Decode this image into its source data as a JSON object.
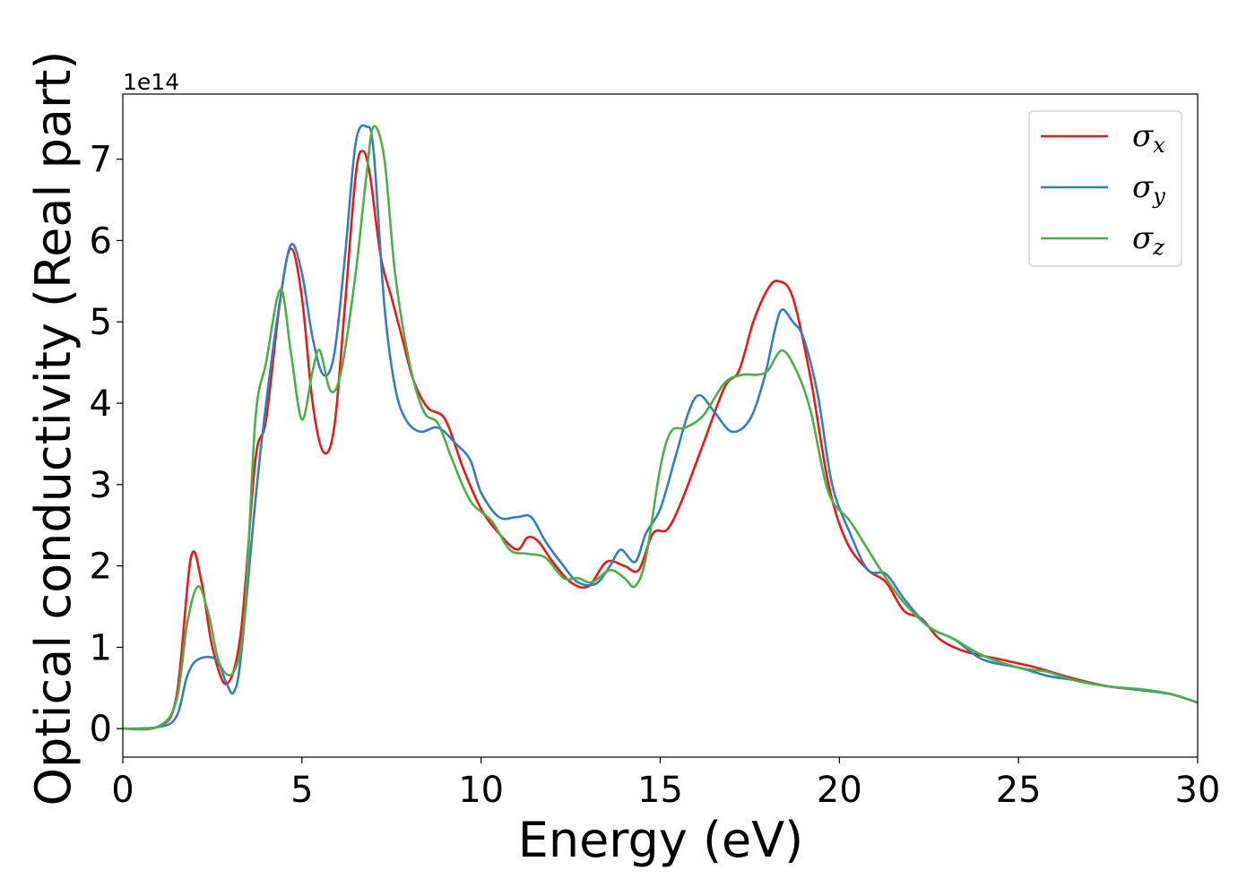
{
  "chart_data": {
    "type": "line",
    "xlabel": "Energy (eV)",
    "ylabel": "Optical conductivity (Real part)",
    "y_offset_label": "1e14",
    "xlim": [
      0,
      30
    ],
    "ylim": [
      -0.35,
      7.8
    ],
    "xticks": [
      0,
      5,
      10,
      15,
      20,
      25,
      30
    ],
    "yticks": [
      0,
      1,
      2,
      3,
      4,
      5,
      6,
      7
    ],
    "grid": false,
    "legend_position": "top-right",
    "series": [
      {
        "name": "σx",
        "symbol": "σ",
        "subscript": "x",
        "color": "#e41a1c",
        "points": [
          [
            0,
            0
          ],
          [
            1,
            0.03
          ],
          [
            1.5,
            0.4
          ],
          [
            1.9,
            2.1
          ],
          [
            2.2,
            1.8
          ],
          [
            2.5,
            1.0
          ],
          [
            2.9,
            0.55
          ],
          [
            3.3,
            1.2
          ],
          [
            3.7,
            3.3
          ],
          [
            4.0,
            3.8
          ],
          [
            4.4,
            5.3
          ],
          [
            4.7,
            5.9
          ],
          [
            5.0,
            5.3
          ],
          [
            5.3,
            4.0
          ],
          [
            5.6,
            3.4
          ],
          [
            5.9,
            3.7
          ],
          [
            6.2,
            5.2
          ],
          [
            6.5,
            6.8
          ],
          [
            6.7,
            7.1
          ],
          [
            6.9,
            6.8
          ],
          [
            7.2,
            5.8
          ],
          [
            7.5,
            5.3
          ],
          [
            7.8,
            4.8
          ],
          [
            8.1,
            4.3
          ],
          [
            8.5,
            3.95
          ],
          [
            9.0,
            3.8
          ],
          [
            9.5,
            3.2
          ],
          [
            10,
            2.7
          ],
          [
            10.5,
            2.4
          ],
          [
            11,
            2.2
          ],
          [
            11.3,
            2.35
          ],
          [
            11.6,
            2.3
          ],
          [
            12,
            2.05
          ],
          [
            12.5,
            1.8
          ],
          [
            13.0,
            1.75
          ],
          [
            13.5,
            2.05
          ],
          [
            14.0,
            2.0
          ],
          [
            14.4,
            1.95
          ],
          [
            14.8,
            2.4
          ],
          [
            15.2,
            2.45
          ],
          [
            15.6,
            2.8
          ],
          [
            16.2,
            3.5
          ],
          [
            16.8,
            4.2
          ],
          [
            17.2,
            4.4
          ],
          [
            17.6,
            5.0
          ],
          [
            18.0,
            5.4
          ],
          [
            18.3,
            5.5
          ],
          [
            18.7,
            5.3
          ],
          [
            19.2,
            4.3
          ],
          [
            19.7,
            3.0
          ],
          [
            20.2,
            2.3
          ],
          [
            20.8,
            1.95
          ],
          [
            21.3,
            1.8
          ],
          [
            21.8,
            1.45
          ],
          [
            22.3,
            1.35
          ],
          [
            22.8,
            1.1
          ],
          [
            23.5,
            0.95
          ],
          [
            24.5,
            0.85
          ],
          [
            25.5,
            0.75
          ],
          [
            26.5,
            0.62
          ],
          [
            27.5,
            0.52
          ],
          [
            28.5,
            0.47
          ],
          [
            29.3,
            0.42
          ],
          [
            30,
            0.32
          ]
        ]
      },
      {
        "name": "σy",
        "symbol": "σ",
        "subscript": "y",
        "color": "#377eb8",
        "points": [
          [
            0,
            0
          ],
          [
            1,
            0.02
          ],
          [
            1.5,
            0.15
          ],
          [
            1.8,
            0.65
          ],
          [
            2.1,
            0.85
          ],
          [
            2.6,
            0.85
          ],
          [
            2.9,
            0.55
          ],
          [
            3.1,
            0.45
          ],
          [
            3.3,
            0.9
          ],
          [
            3.7,
            2.8
          ],
          [
            4.0,
            4.0
          ],
          [
            4.4,
            5.3
          ],
          [
            4.7,
            5.95
          ],
          [
            5.0,
            5.6
          ],
          [
            5.3,
            4.8
          ],
          [
            5.6,
            4.35
          ],
          [
            5.9,
            4.6
          ],
          [
            6.2,
            5.8
          ],
          [
            6.5,
            7.2
          ],
          [
            6.8,
            7.4
          ],
          [
            7.0,
            7.1
          ],
          [
            7.3,
            5.2
          ],
          [
            7.6,
            4.2
          ],
          [
            7.9,
            3.8
          ],
          [
            8.3,
            3.65
          ],
          [
            8.8,
            3.7
          ],
          [
            9.3,
            3.5
          ],
          [
            9.7,
            3.3
          ],
          [
            10,
            2.9
          ],
          [
            10.5,
            2.6
          ],
          [
            11,
            2.6
          ],
          [
            11.4,
            2.6
          ],
          [
            11.8,
            2.3
          ],
          [
            12.3,
            2.0
          ],
          [
            12.7,
            1.8
          ],
          [
            13.2,
            1.78
          ],
          [
            13.6,
            2.0
          ],
          [
            13.9,
            2.2
          ],
          [
            14.3,
            2.05
          ],
          [
            14.6,
            2.4
          ],
          [
            15.0,
            2.7
          ],
          [
            15.4,
            3.3
          ],
          [
            15.8,
            3.9
          ],
          [
            16.1,
            4.1
          ],
          [
            16.5,
            3.9
          ],
          [
            17.0,
            3.65
          ],
          [
            17.5,
            3.8
          ],
          [
            17.9,
            4.3
          ],
          [
            18.2,
            4.9
          ],
          [
            18.4,
            5.15
          ],
          [
            18.7,
            5.0
          ],
          [
            19.0,
            4.8
          ],
          [
            19.4,
            4.1
          ],
          [
            19.8,
            3.0
          ],
          [
            20.3,
            2.4
          ],
          [
            20.8,
            1.95
          ],
          [
            21.3,
            1.9
          ],
          [
            21.8,
            1.6
          ],
          [
            22.5,
            1.25
          ],
          [
            23.2,
            1.1
          ],
          [
            24.0,
            0.85
          ],
          [
            25.0,
            0.75
          ],
          [
            25.8,
            0.65
          ],
          [
            26.5,
            0.6
          ],
          [
            27.5,
            0.52
          ],
          [
            28.5,
            0.47
          ],
          [
            29.3,
            0.42
          ],
          [
            30,
            0.32
          ]
        ]
      },
      {
        "name": "σz",
        "symbol": "σ",
        "subscript": "z",
        "color": "#4daf4a",
        "points": [
          [
            0,
            0
          ],
          [
            1,
            0.03
          ],
          [
            1.5,
            0.35
          ],
          [
            1.8,
            1.3
          ],
          [
            2.1,
            1.75
          ],
          [
            2.4,
            1.4
          ],
          [
            2.7,
            0.8
          ],
          [
            3.1,
            0.7
          ],
          [
            3.4,
            1.4
          ],
          [
            3.7,
            3.8
          ],
          [
            4.0,
            4.5
          ],
          [
            4.4,
            5.4
          ],
          [
            4.7,
            4.6
          ],
          [
            5.0,
            3.8
          ],
          [
            5.3,
            4.4
          ],
          [
            5.5,
            4.65
          ],
          [
            5.8,
            4.15
          ],
          [
            6.1,
            4.4
          ],
          [
            6.5,
            5.6
          ],
          [
            6.8,
            6.8
          ],
          [
            7.0,
            7.4
          ],
          [
            7.3,
            7.0
          ],
          [
            7.6,
            5.6
          ],
          [
            8.0,
            4.5
          ],
          [
            8.4,
            3.9
          ],
          [
            8.8,
            3.75
          ],
          [
            9.2,
            3.3
          ],
          [
            9.7,
            2.8
          ],
          [
            10.3,
            2.55
          ],
          [
            10.8,
            2.2
          ],
          [
            11.3,
            2.15
          ],
          [
            11.8,
            2.1
          ],
          [
            12.3,
            1.85
          ],
          [
            12.7,
            1.85
          ],
          [
            13.1,
            1.8
          ],
          [
            13.6,
            1.95
          ],
          [
            14.0,
            1.85
          ],
          [
            14.3,
            1.75
          ],
          [
            14.6,
            2.1
          ],
          [
            15.0,
            3.2
          ],
          [
            15.3,
            3.65
          ],
          [
            15.7,
            3.7
          ],
          [
            16.2,
            3.85
          ],
          [
            16.8,
            4.25
          ],
          [
            17.3,
            4.35
          ],
          [
            17.7,
            4.35
          ],
          [
            18.0,
            4.4
          ],
          [
            18.4,
            4.65
          ],
          [
            18.8,
            4.4
          ],
          [
            19.2,
            3.9
          ],
          [
            19.7,
            2.9
          ],
          [
            20.3,
            2.55
          ],
          [
            20.8,
            2.2
          ],
          [
            21.3,
            1.85
          ],
          [
            21.8,
            1.55
          ],
          [
            22.5,
            1.25
          ],
          [
            23.2,
            1.1
          ],
          [
            24.0,
            0.9
          ],
          [
            25.0,
            0.75
          ],
          [
            25.8,
            0.7
          ],
          [
            26.5,
            0.6
          ],
          [
            27.5,
            0.52
          ],
          [
            28.5,
            0.48
          ],
          [
            29.3,
            0.42
          ],
          [
            30,
            0.32
          ]
        ]
      }
    ]
  }
}
